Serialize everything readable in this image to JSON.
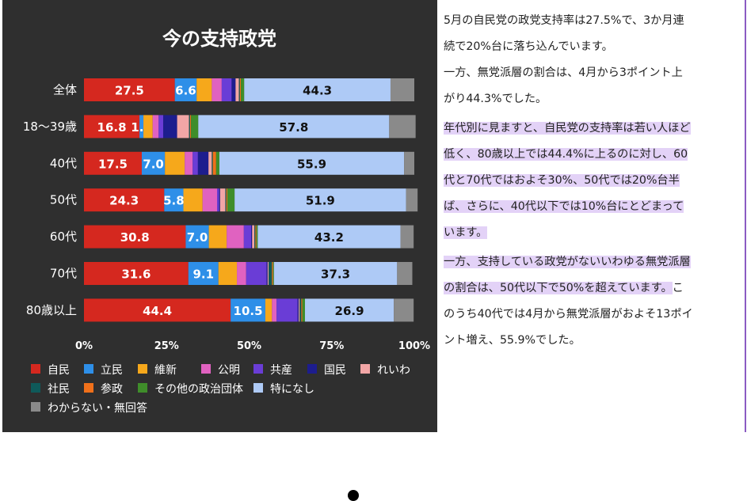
{
  "chart_data": {
    "type": "bar",
    "orientation": "horizontal",
    "stacked": true,
    "title": "今の支持政党",
    "categories": [
      "全体",
      "18〜39歳",
      "40代",
      "50代",
      "60代",
      "70代",
      "80歳以上"
    ],
    "x_ticks": [
      "0%",
      "25%",
      "50%",
      "75%",
      "100%"
    ],
    "xlim": [
      0,
      100
    ],
    "legend_position": "bottom",
    "series": [
      {
        "name": "自民",
        "color": "#d5281f",
        "values": [
          27.5,
          16.8,
          17.5,
          24.3,
          30.8,
          31.6,
          44.4
        ],
        "labels": [
          "27.5",
          "16.8",
          "17.5",
          "24.3",
          "30.8",
          "31.6",
          "44.4"
        ]
      },
      {
        "name": "立民",
        "color": "#2e8fe8",
        "values": [
          6.6,
          1.2,
          7.0,
          5.8,
          7.0,
          9.1,
          10.5
        ],
        "labels": [
          "6.6",
          "1.2",
          "7.0",
          "5.8",
          "7.0",
          "9.1",
          "10.5"
        ]
      },
      {
        "name": "維新",
        "color": "#f6a81b",
        "values": [
          4.6,
          2.8,
          6.0,
          5.8,
          5.4,
          5.6,
          2.0
        ],
        "labels": [
          "",
          "",
          "",
          "",
          "",
          "",
          ""
        ]
      },
      {
        "name": "公明",
        "color": "#e062c0",
        "values": [
          3.0,
          1.8,
          2.4,
          4.4,
          5.2,
          2.8,
          1.4
        ],
        "labels": [
          "",
          "",
          "",
          "",
          "",
          "",
          ""
        ]
      },
      {
        "name": "共産",
        "color": "#6a3dd6",
        "values": [
          3.0,
          1.4,
          1.6,
          0.6,
          2.2,
          6.2,
          6.4
        ],
        "labels": [
          "",
          "",
          "",
          "",
          "",
          "",
          ""
        ]
      },
      {
        "name": "国民",
        "color": "#1d1d8e",
        "values": [
          1.2,
          4.2,
          3.2,
          0.3,
          0.3,
          0.3,
          0.3
        ],
        "labels": [
          "",
          "",
          "",
          "",
          "",
          "",
          ""
        ]
      },
      {
        "name": "れいわ",
        "color": "#f2a6a6",
        "values": [
          1.0,
          3.6,
          1.0,
          1.6,
          0.7,
          0.3,
          0.3
        ],
        "labels": [
          "",
          "",
          "",
          "",
          "",
          "",
          ""
        ]
      },
      {
        "name": "社民",
        "color": "#0f5a5a",
        "values": [
          0.3,
          0.3,
          0.3,
          0.3,
          0.3,
          1.0,
          0.5
        ],
        "labels": [
          "",
          "",
          "",
          "",
          "",
          "",
          ""
        ]
      },
      {
        "name": "参政",
        "color": "#f0701a",
        "values": [
          0.3,
          0.3,
          1.0,
          0.3,
          0.3,
          0.3,
          0.3
        ],
        "labels": [
          "",
          "",
          "",
          "",
          "",
          "",
          ""
        ]
      },
      {
        "name": "その他の政治団体",
        "color": "#3f8d2a",
        "values": [
          1.0,
          2.2,
          1.0,
          2.2,
          0.4,
          0.3,
          0.8
        ],
        "labels": [
          "",
          "",
          "",
          "",
          "",
          "",
          ""
        ]
      },
      {
        "name": "特になし",
        "color": "#aecaf6",
        "values": [
          44.3,
          57.8,
          55.9,
          51.9,
          43.2,
          37.3,
          26.9
        ],
        "labels": [
          "44.3",
          "57.8",
          "55.9",
          "51.9",
          "43.2",
          "37.3",
          "26.9"
        ]
      },
      {
        "name": "わからない・無回答",
        "color": "#8a8a8a",
        "values": [
          7.2,
          8.0,
          3.1,
          3.5,
          4.0,
          4.6,
          6.0
        ],
        "labels": [
          "",
          "",
          "",
          "",
          "",
          "",
          ""
        ]
      }
    ]
  },
  "article": {
    "p1_line1": "5月の自民党の政党支持率は27.5%で、3か月連",
    "p1_line2": "続で20%台に落ち込んでいます。",
    "p1_line3": "一方、無党派層の割合は、4月から3ポイント上",
    "p1_line4": "がり44.3%でした。",
    "p2_line1": "年代別に見ますと、自民党の支持率は若い人ほど",
    "p2_line2": "低く、80歳以上では44.4%に上るのに対し、60",
    "p2_line3": "代と70代ではおよそ30%、50代では20%台半",
    "p2_line4": "ば、さらに、40代以下では10%台にとどまって",
    "p2_line5": "います。",
    "p3_line1": "一方、支持している政党がないいわゆる無党派層",
    "p3_line2_hl": "の割合は、50代以下で50%を超えています。",
    "p3_line2_rest": "こ",
    "p3_line3": "のうち40代では4月から無党派層がおよそ13ポイ",
    "p3_line4": "ント増え、55.9%でした。"
  }
}
